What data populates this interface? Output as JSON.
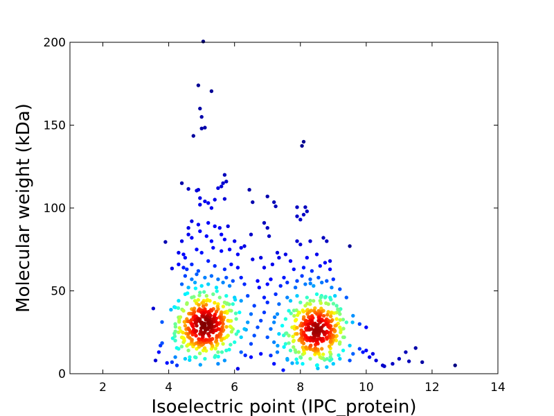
{
  "chart_data": {
    "type": "scatter",
    "title": "",
    "xlabel": "Isoelectric point (IPC_protein)",
    "ylabel": "Molecular weight (kDa)",
    "xlim": [
      1,
      14
    ],
    "ylim": [
      0,
      200
    ],
    "xticks": [
      2,
      4,
      6,
      8,
      10,
      12,
      14
    ],
    "yticks": [
      0,
      50,
      100,
      150,
      200
    ],
    "grid": false,
    "legend": "none",
    "colormap": "jet (point density)",
    "colors": {
      "low_density": "#00008f",
      "mid_density": "#80ff80",
      "high_density": "#800000",
      "axes": "#000000",
      "background": "#ffffff"
    },
    "points": [
      {
        "x": 5.05,
        "y": 200.5
      },
      {
        "x": 4.9,
        "y": 174
      },
      {
        "x": 5.3,
        "y": 170.5
      },
      {
        "x": 4.95,
        "y": 160
      },
      {
        "x": 5.0,
        "y": 155
      },
      {
        "x": 5.1,
        "y": 148.5
      },
      {
        "x": 5.0,
        "y": 148
      },
      {
        "x": 4.75,
        "y": 143.5
      },
      {
        "x": 8.1,
        "y": 140
      },
      {
        "x": 8.05,
        "y": 137.5
      },
      {
        "x": 5.7,
        "y": 120
      },
      {
        "x": 5.65,
        "y": 115
      },
      {
        "x": 5.75,
        "y": 116
      },
      {
        "x": 5.6,
        "y": 113
      },
      {
        "x": 5.5,
        "y": 112
      },
      {
        "x": 4.4,
        "y": 115
      },
      {
        "x": 4.6,
        "y": 111.5
      },
      {
        "x": 4.85,
        "y": 110.5
      },
      {
        "x": 4.9,
        "y": 111
      },
      {
        "x": 6.45,
        "y": 111
      },
      {
        "x": 7.0,
        "y": 107
      },
      {
        "x": 4.95,
        "y": 106
      },
      {
        "x": 5.1,
        "y": 104
      },
      {
        "x": 5.2,
        "y": 103
      },
      {
        "x": 5.3,
        "y": 100
      },
      {
        "x": 5.4,
        "y": 105
      },
      {
        "x": 4.95,
        "y": 102
      },
      {
        "x": 5.7,
        "y": 105.5
      },
      {
        "x": 6.55,
        "y": 103.5
      },
      {
        "x": 7.2,
        "y": 103.5
      },
      {
        "x": 7.25,
        "y": 101
      },
      {
        "x": 7.9,
        "y": 100.5
      },
      {
        "x": 8.15,
        "y": 100.5
      },
      {
        "x": 8.2,
        "y": 98
      },
      {
        "x": 8.1,
        "y": 96
      },
      {
        "x": 7.9,
        "y": 95
      },
      {
        "x": 8.0,
        "y": 93
      },
      {
        "x": 4.7,
        "y": 92
      },
      {
        "x": 4.9,
        "y": 90
      },
      {
        "x": 5.2,
        "y": 91
      },
      {
        "x": 5.4,
        "y": 89
      },
      {
        "x": 5.55,
        "y": 88
      },
      {
        "x": 5.8,
        "y": 89
      },
      {
        "x": 6.9,
        "y": 91
      },
      {
        "x": 7.0,
        "y": 88
      },
      {
        "x": 4.6,
        "y": 88
      },
      {
        "x": 4.95,
        "y": 86
      },
      {
        "x": 4.6,
        "y": 84
      },
      {
        "x": 4.7,
        "y": 82
      },
      {
        "x": 5.15,
        "y": 83
      },
      {
        "x": 5.3,
        "y": 80
      },
      {
        "x": 5.6,
        "y": 84
      },
      {
        "x": 5.7,
        "y": 81
      },
      {
        "x": 6.0,
        "y": 80
      },
      {
        "x": 6.5,
        "y": 84
      },
      {
        "x": 7.05,
        "y": 83
      },
      {
        "x": 7.9,
        "y": 80
      },
      {
        "x": 8.0,
        "y": 78
      },
      {
        "x": 8.3,
        "y": 80
      },
      {
        "x": 8.7,
        "y": 82
      },
      {
        "x": 8.8,
        "y": 80
      },
      {
        "x": 4.4,
        "y": 80
      },
      {
        "x": 3.9,
        "y": 79.5
      },
      {
        "x": 4.1,
        "y": 63.5
      },
      {
        "x": 9.5,
        "y": 77
      },
      {
        "x": 4.3,
        "y": 73
      },
      {
        "x": 4.45,
        "y": 72
      },
      {
        "x": 4.5,
        "y": 70
      },
      {
        "x": 4.85,
        "y": 75
      },
      {
        "x": 5.0,
        "y": 73
      },
      {
        "x": 5.35,
        "y": 76
      },
      {
        "x": 5.6,
        "y": 74
      },
      {
        "x": 5.85,
        "y": 75
      },
      {
        "x": 6.1,
        "y": 72
      },
      {
        "x": 6.2,
        "y": 76
      },
      {
        "x": 6.3,
        "y": 77
      },
      {
        "x": 6.55,
        "y": 69
      },
      {
        "x": 6.8,
        "y": 70
      },
      {
        "x": 7.3,
        "y": 73
      },
      {
        "x": 7.35,
        "y": 70
      },
      {
        "x": 7.55,
        "y": 72
      },
      {
        "x": 7.7,
        "y": 68
      },
      {
        "x": 8.2,
        "y": 70
      },
      {
        "x": 8.5,
        "y": 72
      },
      {
        "x": 8.75,
        "y": 67
      },
      {
        "x": 8.9,
        "y": 68
      },
      {
        "x": 4.3,
        "y": 66
      },
      {
        "x": 4.45,
        "y": 64
      },
      {
        "x": 4.55,
        "y": 63
      },
      {
        "x": 4.7,
        "y": 66
      },
      {
        "x": 4.9,
        "y": 62
      },
      {
        "x": 5.2,
        "y": 68
      },
      {
        "x": 5.4,
        "y": 65
      },
      {
        "x": 5.7,
        "y": 63
      },
      {
        "x": 5.9,
        "y": 66
      },
      {
        "x": 6.1,
        "y": 64
      },
      {
        "x": 6.9,
        "y": 64
      },
      {
        "x": 7.15,
        "y": 66
      },
      {
        "x": 7.8,
        "y": 63
      },
      {
        "x": 8.1,
        "y": 64
      },
      {
        "x": 8.35,
        "y": 62
      },
      {
        "x": 8.6,
        "y": 65
      },
      {
        "x": 8.9,
        "y": 63
      },
      {
        "x": 4.5,
        "y": 59
      },
      {
        "x": 4.7,
        "y": 57
      },
      {
        "x": 4.85,
        "y": 60
      },
      {
        "x": 5.1,
        "y": 58
      },
      {
        "x": 5.3,
        "y": 59
      },
      {
        "x": 5.5,
        "y": 57
      },
      {
        "x": 5.75,
        "y": 58
      },
      {
        "x": 5.95,
        "y": 56
      },
      {
        "x": 6.2,
        "y": 58
      },
      {
        "x": 6.7,
        "y": 56
      },
      {
        "x": 7.1,
        "y": 57
      },
      {
        "x": 7.5,
        "y": 58
      },
      {
        "x": 7.9,
        "y": 56
      },
      {
        "x": 8.05,
        "y": 59
      },
      {
        "x": 8.3,
        "y": 57
      },
      {
        "x": 8.55,
        "y": 58
      },
      {
        "x": 8.8,
        "y": 56
      },
      {
        "x": 9.0,
        "y": 57
      },
      {
        "x": 4.4,
        "y": 54
      },
      {
        "x": 4.6,
        "y": 52
      },
      {
        "x": 4.8,
        "y": 55
      },
      {
        "x": 5.0,
        "y": 53
      },
      {
        "x": 5.2,
        "y": 54
      },
      {
        "x": 5.45,
        "y": 52
      },
      {
        "x": 5.65,
        "y": 55
      },
      {
        "x": 5.85,
        "y": 53
      },
      {
        "x": 6.3,
        "y": 54
      },
      {
        "x": 6.75,
        "y": 52
      },
      {
        "x": 7.0,
        "y": 54
      },
      {
        "x": 7.4,
        "y": 53
      },
      {
        "x": 7.6,
        "y": 55
      },
      {
        "x": 7.85,
        "y": 52
      },
      {
        "x": 8.15,
        "y": 54
      },
      {
        "x": 8.4,
        "y": 53
      },
      {
        "x": 8.65,
        "y": 55
      },
      {
        "x": 8.95,
        "y": 52
      },
      {
        "x": 9.2,
        "y": 51
      },
      {
        "x": 4.5,
        "y": 48
      },
      {
        "x": 4.7,
        "y": 46
      },
      {
        "x": 4.95,
        "y": 49
      },
      {
        "x": 5.15,
        "y": 47
      },
      {
        "x": 5.35,
        "y": 48
      },
      {
        "x": 5.55,
        "y": 46
      },
      {
        "x": 5.75,
        "y": 47
      },
      {
        "x": 6.0,
        "y": 46
      },
      {
        "x": 6.4,
        "y": 47
      },
      {
        "x": 6.9,
        "y": 46
      },
      {
        "x": 7.25,
        "y": 48
      },
      {
        "x": 7.6,
        "y": 46
      },
      {
        "x": 7.9,
        "y": 47
      },
      {
        "x": 8.2,
        "y": 46
      },
      {
        "x": 8.5,
        "y": 48
      },
      {
        "x": 8.75,
        "y": 46
      },
      {
        "x": 9.05,
        "y": 47
      },
      {
        "x": 9.4,
        "y": 46
      },
      {
        "x": 4.3,
        "y": 44
      },
      {
        "x": 4.55,
        "y": 42
      },
      {
        "x": 4.8,
        "y": 44
      },
      {
        "x": 5.05,
        "y": 43
      },
      {
        "x": 5.25,
        "y": 44
      },
      {
        "x": 5.5,
        "y": 42
      },
      {
        "x": 5.7,
        "y": 43
      },
      {
        "x": 5.95,
        "y": 42
      },
      {
        "x": 6.2,
        "y": 44
      },
      {
        "x": 6.6,
        "y": 41
      },
      {
        "x": 7.0,
        "y": 43
      },
      {
        "x": 7.35,
        "y": 42
      },
      {
        "x": 7.7,
        "y": 44
      },
      {
        "x": 8.0,
        "y": 43
      },
      {
        "x": 8.3,
        "y": 42
      },
      {
        "x": 8.6,
        "y": 44
      },
      {
        "x": 8.85,
        "y": 42
      },
      {
        "x": 9.1,
        "y": 41
      },
      {
        "x": 4.2,
        "y": 40
      },
      {
        "x": 4.45,
        "y": 38
      },
      {
        "x": 4.7,
        "y": 39
      },
      {
        "x": 4.9,
        "y": 38
      },
      {
        "x": 5.1,
        "y": 39
      },
      {
        "x": 5.3,
        "y": 38
      },
      {
        "x": 5.5,
        "y": 39
      },
      {
        "x": 5.7,
        "y": 37
      },
      {
        "x": 5.9,
        "y": 38
      },
      {
        "x": 6.15,
        "y": 37
      },
      {
        "x": 6.5,
        "y": 36
      },
      {
        "x": 6.9,
        "y": 37
      },
      {
        "x": 7.3,
        "y": 36
      },
      {
        "x": 7.65,
        "y": 38
      },
      {
        "x": 7.95,
        "y": 37
      },
      {
        "x": 8.2,
        "y": 38
      },
      {
        "x": 8.45,
        "y": 37
      },
      {
        "x": 8.7,
        "y": 38
      },
      {
        "x": 8.95,
        "y": 37
      },
      {
        "x": 9.2,
        "y": 36
      },
      {
        "x": 9.6,
        "y": 35
      },
      {
        "x": 4.3,
        "y": 34
      },
      {
        "x": 4.55,
        "y": 33
      },
      {
        "x": 4.75,
        "y": 34
      },
      {
        "x": 4.95,
        "y": 33
      },
      {
        "x": 5.15,
        "y": 34
      },
      {
        "x": 5.35,
        "y": 33
      },
      {
        "x": 5.55,
        "y": 34
      },
      {
        "x": 5.8,
        "y": 32
      },
      {
        "x": 6.05,
        "y": 33
      },
      {
        "x": 6.4,
        "y": 31
      },
      {
        "x": 6.8,
        "y": 32
      },
      {
        "x": 7.2,
        "y": 31
      },
      {
        "x": 7.55,
        "y": 33
      },
      {
        "x": 7.85,
        "y": 32
      },
      {
        "x": 8.1,
        "y": 33
      },
      {
        "x": 8.35,
        "y": 32
      },
      {
        "x": 8.6,
        "y": 33
      },
      {
        "x": 8.85,
        "y": 32
      },
      {
        "x": 9.1,
        "y": 33
      },
      {
        "x": 9.4,
        "y": 31
      },
      {
        "x": 4.2,
        "y": 30
      },
      {
        "x": 4.5,
        "y": 29
      },
      {
        "x": 4.7,
        "y": 30
      },
      {
        "x": 4.85,
        "y": 29
      },
      {
        "x": 5.0,
        "y": 30
      },
      {
        "x": 5.1,
        "y": 29
      },
      {
        "x": 5.25,
        "y": 30
      },
      {
        "x": 5.45,
        "y": 29
      },
      {
        "x": 5.65,
        "y": 30
      },
      {
        "x": 5.9,
        "y": 28
      },
      {
        "x": 6.3,
        "y": 27
      },
      {
        "x": 6.7,
        "y": 28
      },
      {
        "x": 7.1,
        "y": 27
      },
      {
        "x": 7.45,
        "y": 29
      },
      {
        "x": 7.75,
        "y": 28
      },
      {
        "x": 8.0,
        "y": 29
      },
      {
        "x": 8.25,
        "y": 28
      },
      {
        "x": 8.45,
        "y": 29
      },
      {
        "x": 8.65,
        "y": 28
      },
      {
        "x": 8.9,
        "y": 29
      },
      {
        "x": 9.2,
        "y": 28
      },
      {
        "x": 9.8,
        "y": 30
      },
      {
        "x": 10.0,
        "y": 28
      },
      {
        "x": 4.3,
        "y": 25
      },
      {
        "x": 4.6,
        "y": 24
      },
      {
        "x": 4.8,
        "y": 25
      },
      {
        "x": 4.95,
        "y": 24
      },
      {
        "x": 5.1,
        "y": 25
      },
      {
        "x": 5.2,
        "y": 24
      },
      {
        "x": 5.35,
        "y": 25
      },
      {
        "x": 5.55,
        "y": 24
      },
      {
        "x": 5.8,
        "y": 23
      },
      {
        "x": 6.2,
        "y": 22
      },
      {
        "x": 6.6,
        "y": 23
      },
      {
        "x": 7.0,
        "y": 22
      },
      {
        "x": 7.35,
        "y": 24
      },
      {
        "x": 7.65,
        "y": 23
      },
      {
        "x": 7.9,
        "y": 24
      },
      {
        "x": 8.15,
        "y": 23
      },
      {
        "x": 8.4,
        "y": 24
      },
      {
        "x": 8.55,
        "y": 23
      },
      {
        "x": 8.75,
        "y": 24
      },
      {
        "x": 9.0,
        "y": 23
      },
      {
        "x": 9.3,
        "y": 22
      },
      {
        "x": 4.2,
        "y": 20
      },
      {
        "x": 4.45,
        "y": 19
      },
      {
        "x": 4.7,
        "y": 20
      },
      {
        "x": 4.9,
        "y": 19
      },
      {
        "x": 5.05,
        "y": 20
      },
      {
        "x": 5.25,
        "y": 19
      },
      {
        "x": 5.45,
        "y": 20
      },
      {
        "x": 5.65,
        "y": 18
      },
      {
        "x": 6.0,
        "y": 19
      },
      {
        "x": 6.5,
        "y": 18
      },
      {
        "x": 7.2,
        "y": 19
      },
      {
        "x": 7.55,
        "y": 18
      },
      {
        "x": 7.8,
        "y": 20
      },
      {
        "x": 8.05,
        "y": 19
      },
      {
        "x": 8.3,
        "y": 20
      },
      {
        "x": 8.5,
        "y": 19
      },
      {
        "x": 8.7,
        "y": 20
      },
      {
        "x": 8.95,
        "y": 18
      },
      {
        "x": 9.2,
        "y": 19
      },
      {
        "x": 9.5,
        "y": 17
      },
      {
        "x": 4.3,
        "y": 15
      },
      {
        "x": 4.6,
        "y": 14
      },
      {
        "x": 4.85,
        "y": 15
      },
      {
        "x": 5.05,
        "y": 14
      },
      {
        "x": 5.3,
        "y": 15
      },
      {
        "x": 5.5,
        "y": 13
      },
      {
        "x": 5.75,
        "y": 14
      },
      {
        "x": 6.2,
        "y": 13
      },
      {
        "x": 6.8,
        "y": 12
      },
      {
        "x": 7.3,
        "y": 13
      },
      {
        "x": 7.7,
        "y": 14
      },
      {
        "x": 7.95,
        "y": 13
      },
      {
        "x": 8.2,
        "y": 15
      },
      {
        "x": 8.45,
        "y": 14
      },
      {
        "x": 8.65,
        "y": 15
      },
      {
        "x": 8.9,
        "y": 13
      },
      {
        "x": 9.3,
        "y": 14
      },
      {
        "x": 9.6,
        "y": 12
      },
      {
        "x": 9.9,
        "y": 13
      },
      {
        "x": 4.2,
        "y": 10
      },
      {
        "x": 4.5,
        "y": 9
      },
      {
        "x": 4.8,
        "y": 10
      },
      {
        "x": 5.1,
        "y": 9
      },
      {
        "x": 5.4,
        "y": 10
      },
      {
        "x": 5.7,
        "y": 8
      },
      {
        "x": 6.5,
        "y": 10
      },
      {
        "x": 7.1,
        "y": 11
      },
      {
        "x": 7.6,
        "y": 9
      },
      {
        "x": 8.0,
        "y": 10
      },
      {
        "x": 8.3,
        "y": 9
      },
      {
        "x": 8.6,
        "y": 10
      },
      {
        "x": 8.9,
        "y": 8
      },
      {
        "x": 9.2,
        "y": 9
      },
      {
        "x": 9.5,
        "y": 8
      },
      {
        "x": 3.6,
        "y": 8
      },
      {
        "x": 3.7,
        "y": 13
      },
      {
        "x": 3.75,
        "y": 17
      },
      {
        "x": 3.8,
        "y": 18.5
      },
      {
        "x": 3.95,
        "y": 6.5
      },
      {
        "x": 4.1,
        "y": 7
      },
      {
        "x": 4.25,
        "y": 5
      },
      {
        "x": 5.5,
        "y": 6
      },
      {
        "x": 6.1,
        "y": 3
      },
      {
        "x": 7.2,
        "y": 6
      },
      {
        "x": 8.5,
        "y": 5
      },
      {
        "x": 8.8,
        "y": 4
      },
      {
        "x": 9.0,
        "y": 6
      },
      {
        "x": 9.8,
        "y": 15
      },
      {
        "x": 10.0,
        "y": 14
      },
      {
        "x": 10.2,
        "y": 12
      },
      {
        "x": 10.1,
        "y": 10
      },
      {
        "x": 10.3,
        "y": 8
      },
      {
        "x": 10.5,
        "y": 5
      },
      {
        "x": 10.55,
        "y": 4.5
      },
      {
        "x": 10.8,
        "y": 6
      },
      {
        "x": 11.0,
        "y": 9
      },
      {
        "x": 11.2,
        "y": 13
      },
      {
        "x": 11.3,
        "y": 7.5
      },
      {
        "x": 11.5,
        "y": 15.5
      },
      {
        "x": 11.7,
        "y": 7
      },
      {
        "x": 12.7,
        "y": 5
      }
    ],
    "density_peaks": [
      {
        "x": 5.1,
        "y": 29,
        "spread_x": 0.45,
        "spread_y": 9
      },
      {
        "x": 8.5,
        "y": 25,
        "spread_x": 0.45,
        "spread_y": 9
      }
    ]
  }
}
